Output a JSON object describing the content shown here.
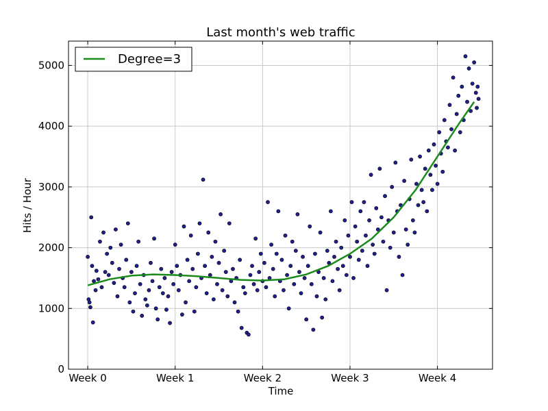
{
  "chart_data": {
    "type": "scatter",
    "title": "Last month's web traffic",
    "xlabel": "Time",
    "ylabel": "Hits / Hour",
    "xlim": [
      -0.22,
      4.63
    ],
    "ylim": [
      0,
      5400
    ],
    "grid": true,
    "legend_position": "top-left",
    "x_ticks": [
      {
        "value": 0,
        "label": "Week 0"
      },
      {
        "value": 1,
        "label": "Week 1"
      },
      {
        "value": 2,
        "label": "Week 2"
      },
      {
        "value": 3,
        "label": "Week 3"
      },
      {
        "value": 4,
        "label": "Week 4"
      }
    ],
    "y_ticks": [
      {
        "value": 0,
        "label": "0"
      },
      {
        "value": 1000,
        "label": "1000"
      },
      {
        "value": 2000,
        "label": "2000"
      },
      {
        "value": 3000,
        "label": "3000"
      },
      {
        "value": 4000,
        "label": "4000"
      },
      {
        "value": 5000,
        "label": "5000"
      }
    ],
    "series": [
      {
        "name": "",
        "kind": "scatter",
        "color": "#1f1f8f",
        "points": [
          [
            0.0,
            1850
          ],
          [
            0.01,
            1150
          ],
          [
            0.02,
            1100
          ],
          [
            0.03,
            1020
          ],
          [
            0.04,
            2500
          ],
          [
            0.05,
            1700
          ],
          [
            0.06,
            770
          ],
          [
            0.07,
            1450
          ],
          [
            0.09,
            1300
          ],
          [
            0.1,
            1620
          ],
          [
            0.12,
            1480
          ],
          [
            0.14,
            2100
          ],
          [
            0.16,
            1350
          ],
          [
            0.18,
            2250
          ],
          [
            0.2,
            1600
          ],
          [
            0.22,
            1900
          ],
          [
            0.24,
            1550
          ],
          [
            0.26,
            2000
          ],
          [
            0.28,
            1750
          ],
          [
            0.3,
            1420
          ],
          [
            0.32,
            2300
          ],
          [
            0.34,
            1200
          ],
          [
            0.36,
            1650
          ],
          [
            0.38,
            2050
          ],
          [
            0.4,
            1500
          ],
          [
            0.42,
            1350
          ],
          [
            0.44,
            1800
          ],
          [
            0.46,
            2400
          ],
          [
            0.48,
            1100
          ],
          [
            0.5,
            1600
          ],
          [
            0.52,
            950
          ],
          [
            0.54,
            1250
          ],
          [
            0.56,
            1700
          ],
          [
            0.58,
            2100
          ],
          [
            0.6,
            1400
          ],
          [
            0.62,
            880
          ],
          [
            0.64,
            1550
          ],
          [
            0.66,
            1150
          ],
          [
            0.68,
            1050
          ],
          [
            0.7,
            1300
          ],
          [
            0.72,
            1750
          ],
          [
            0.74,
            1450
          ],
          [
            0.76,
            2150
          ],
          [
            0.78,
            1000
          ],
          [
            0.8,
            820
          ],
          [
            0.82,
            1350
          ],
          [
            0.84,
            1650
          ],
          [
            0.86,
            1250
          ],
          [
            0.88,
            1500
          ],
          [
            0.9,
            980
          ],
          [
            0.92,
            1200
          ],
          [
            0.94,
            760
          ],
          [
            0.96,
            1600
          ],
          [
            0.98,
            1400
          ],
          [
            1.0,
            2050
          ],
          [
            1.02,
            1700
          ],
          [
            1.04,
            1300
          ],
          [
            1.06,
            1550
          ],
          [
            1.08,
            900
          ],
          [
            1.1,
            2350
          ],
          [
            1.12,
            1100
          ],
          [
            1.14,
            1800
          ],
          [
            1.16,
            1450
          ],
          [
            1.18,
            2200
          ],
          [
            1.2,
            1650
          ],
          [
            1.22,
            950
          ],
          [
            1.24,
            1350
          ],
          [
            1.26,
            1900
          ],
          [
            1.28,
            2400
          ],
          [
            1.3,
            1500
          ],
          [
            1.32,
            3120
          ],
          [
            1.34,
            1700
          ],
          [
            1.36,
            1250
          ],
          [
            1.38,
            2250
          ],
          [
            1.4,
            1550
          ],
          [
            1.42,
            1850
          ],
          [
            1.44,
            1150
          ],
          [
            1.46,
            2100
          ],
          [
            1.48,
            1400
          ],
          [
            1.5,
            1750
          ],
          [
            1.52,
            2550
          ],
          [
            1.54,
            1300
          ],
          [
            1.56,
            1950
          ],
          [
            1.58,
            1600
          ],
          [
            1.6,
            1200
          ],
          [
            1.62,
            2400
          ],
          [
            1.64,
            1450
          ],
          [
            1.66,
            1650
          ],
          [
            1.68,
            1100
          ],
          [
            1.7,
            1500
          ],
          [
            1.72,
            950
          ],
          [
            1.74,
            1800
          ],
          [
            1.76,
            680
          ],
          [
            1.78,
            1350
          ],
          [
            1.8,
            1250
          ],
          [
            1.82,
            600
          ],
          [
            1.84,
            570
          ],
          [
            1.86,
            1550
          ],
          [
            1.88,
            1700
          ],
          [
            1.9,
            1400
          ],
          [
            1.92,
            2150
          ],
          [
            1.94,
            1300
          ],
          [
            1.96,
            1600
          ],
          [
            1.98,
            1900
          ],
          [
            2.0,
            1450
          ],
          [
            2.02,
            1750
          ],
          [
            2.04,
            1350
          ],
          [
            2.06,
            2750
          ],
          [
            2.08,
            1500
          ],
          [
            2.1,
            2050
          ],
          [
            2.12,
            1650
          ],
          [
            2.14,
            1200
          ],
          [
            2.16,
            1900
          ],
          [
            2.18,
            2600
          ],
          [
            2.2,
            1450
          ],
          [
            2.22,
            1800
          ],
          [
            2.24,
            1300
          ],
          [
            2.26,
            2200
          ],
          [
            2.28,
            1550
          ],
          [
            2.3,
            1000
          ],
          [
            2.32,
            1700
          ],
          [
            2.34,
            2100
          ],
          [
            2.36,
            1400
          ],
          [
            2.38,
            1950
          ],
          [
            2.4,
            2550
          ],
          [
            2.42,
            1600
          ],
          [
            2.44,
            1250
          ],
          [
            2.46,
            1850
          ],
          [
            2.48,
            1500
          ],
          [
            2.5,
            820
          ],
          [
            2.52,
            1700
          ],
          [
            2.54,
            2350
          ],
          [
            2.56,
            1400
          ],
          [
            2.58,
            650
          ],
          [
            2.6,
            1900
          ],
          [
            2.62,
            1200
          ],
          [
            2.64,
            1600
          ],
          [
            2.66,
            2250
          ],
          [
            2.68,
            850
          ],
          [
            2.7,
            1500
          ],
          [
            2.72,
            1150
          ],
          [
            2.74,
            1950
          ],
          [
            2.76,
            1750
          ],
          [
            2.78,
            2600
          ],
          [
            2.8,
            1450
          ],
          [
            2.82,
            1850
          ],
          [
            2.84,
            2100
          ],
          [
            2.86,
            1650
          ],
          [
            2.88,
            1300
          ],
          [
            2.9,
            2000
          ],
          [
            2.92,
            1700
          ],
          [
            2.94,
            2450
          ],
          [
            2.96,
            1550
          ],
          [
            2.98,
            2200
          ],
          [
            3.0,
            1850
          ],
          [
            3.02,
            2750
          ],
          [
            3.04,
            1500
          ],
          [
            3.06,
            2350
          ],
          [
            3.08,
            2100
          ],
          [
            3.1,
            1800
          ],
          [
            3.12,
            2600
          ],
          [
            3.14,
            1950
          ],
          [
            3.16,
            2750
          ],
          [
            3.18,
            2200
          ],
          [
            3.2,
            1700
          ],
          [
            3.22,
            2450
          ],
          [
            3.24,
            3200
          ],
          [
            3.26,
            2050
          ],
          [
            3.28,
            1900
          ],
          [
            3.3,
            2650
          ],
          [
            3.32,
            2300
          ],
          [
            3.34,
            3300
          ],
          [
            3.36,
            2500
          ],
          [
            3.38,
            2100
          ],
          [
            3.4,
            2850
          ],
          [
            3.42,
            1300
          ],
          [
            3.44,
            2450
          ],
          [
            3.46,
            2000
          ],
          [
            3.48,
            3000
          ],
          [
            3.5,
            2250
          ],
          [
            3.52,
            3400
          ],
          [
            3.54,
            2600
          ],
          [
            3.56,
            1850
          ],
          [
            3.58,
            2700
          ],
          [
            3.6,
            1550
          ],
          [
            3.62,
            3100
          ],
          [
            3.64,
            2300
          ],
          [
            3.66,
            2050
          ],
          [
            3.68,
            2800
          ],
          [
            3.7,
            3450
          ],
          [
            3.72,
            2450
          ],
          [
            3.74,
            2250
          ],
          [
            3.76,
            3050
          ],
          [
            3.78,
            2700
          ],
          [
            3.8,
            3500
          ],
          [
            3.82,
            2950
          ],
          [
            3.84,
            2750
          ],
          [
            3.86,
            3300
          ],
          [
            3.88,
            2600
          ],
          [
            3.9,
            3600
          ],
          [
            3.92,
            3200
          ],
          [
            3.94,
            2950
          ],
          [
            3.96,
            3700
          ],
          [
            3.98,
            3350
          ],
          [
            4.0,
            3050
          ],
          [
            4.02,
            3900
          ],
          [
            4.04,
            3550
          ],
          [
            4.06,
            3250
          ],
          [
            4.08,
            4100
          ],
          [
            4.1,
            3750
          ],
          [
            4.12,
            3650
          ],
          [
            4.14,
            4350
          ],
          [
            4.16,
            3950
          ],
          [
            4.18,
            4800
          ],
          [
            4.2,
            3600
          ],
          [
            4.22,
            4200
          ],
          [
            4.24,
            4500
          ],
          [
            4.26,
            3900
          ],
          [
            4.28,
            4650
          ],
          [
            4.3,
            4100
          ],
          [
            4.32,
            5150
          ],
          [
            4.34,
            4400
          ],
          [
            4.36,
            4950
          ],
          [
            4.38,
            4250
          ],
          [
            4.4,
            4700
          ],
          [
            4.42,
            5050
          ],
          [
            4.44,
            4550
          ],
          [
            4.45,
            4300
          ],
          [
            4.46,
            4650
          ],
          [
            4.47,
            4450
          ]
        ]
      },
      {
        "name": "Degree=3",
        "kind": "line",
        "color": "#1a8a1a",
        "points": [
          [
            0.0,
            1380
          ],
          [
            0.25,
            1480
          ],
          [
            0.5,
            1540
          ],
          [
            0.75,
            1560
          ],
          [
            1.0,
            1550
          ],
          [
            1.25,
            1530
          ],
          [
            1.5,
            1500
          ],
          [
            1.75,
            1470
          ],
          [
            2.0,
            1460
          ],
          [
            2.25,
            1480
          ],
          [
            2.5,
            1560
          ],
          [
            2.75,
            1700
          ],
          [
            3.0,
            1900
          ],
          [
            3.25,
            2150
          ],
          [
            3.5,
            2500
          ],
          [
            3.75,
            2950
          ],
          [
            4.0,
            3500
          ],
          [
            4.25,
            4050
          ],
          [
            4.42,
            4400
          ]
        ]
      }
    ]
  }
}
